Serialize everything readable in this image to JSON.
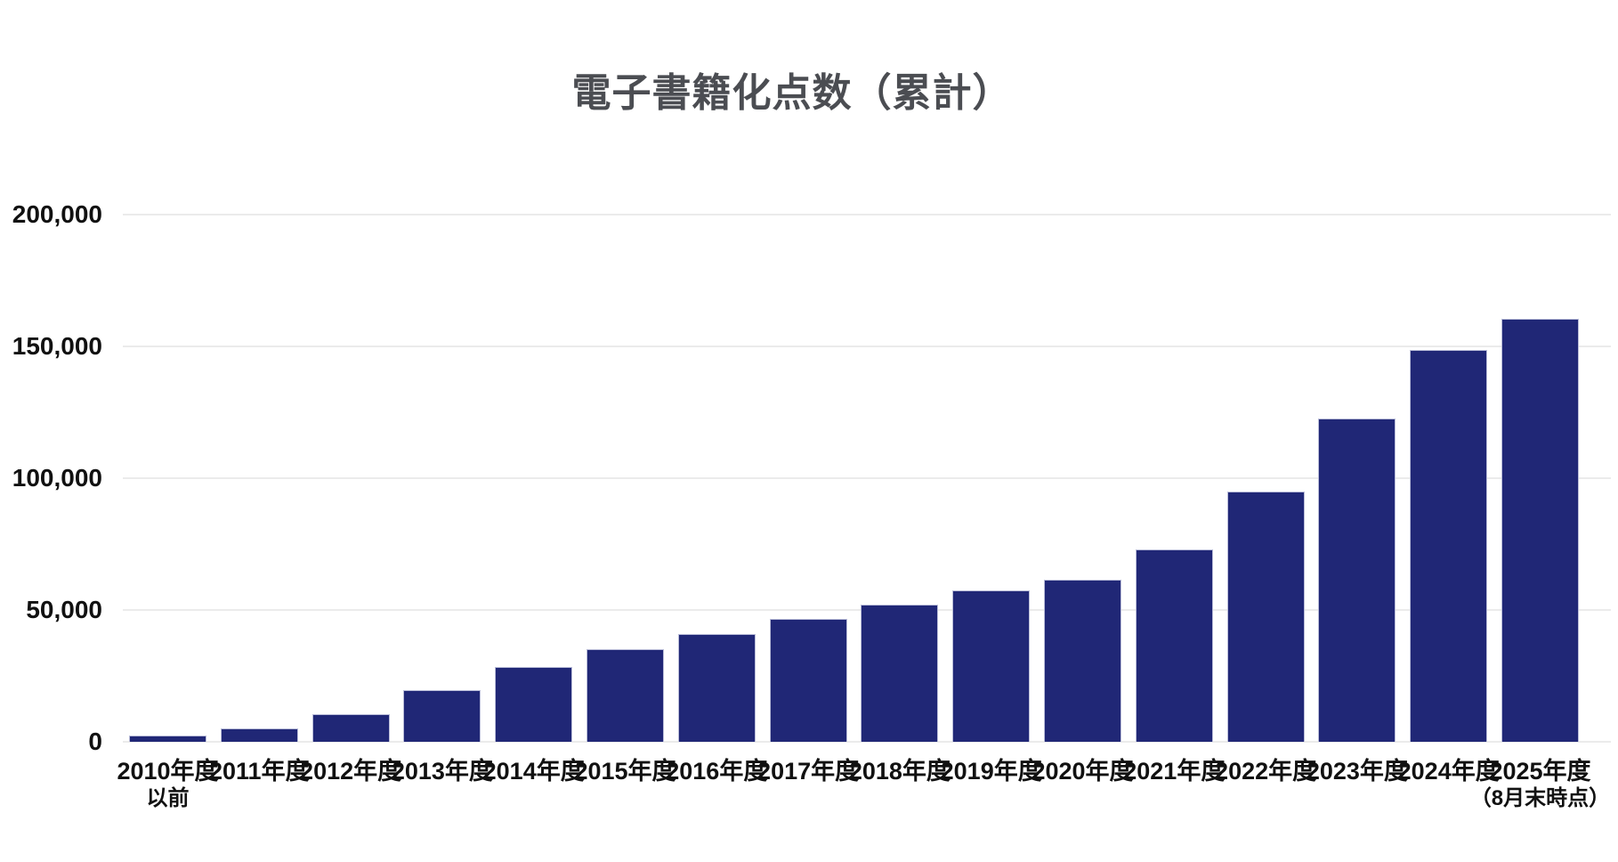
{
  "chart_data": {
    "type": "bar",
    "title": "電子書籍化点数（累計）",
    "xlabel": "",
    "ylabel": "",
    "ylim": [
      0,
      200000
    ],
    "grid": "horizontal gridlines, light gray, on",
    "legend": "none",
    "categories": [
      {
        "key": "2010-and-earlier",
        "label": "2010年度",
        "sublabel": "以前"
      },
      {
        "key": "2011",
        "label": "2011年度",
        "sublabel": ""
      },
      {
        "key": "2012",
        "label": "2012年度",
        "sublabel": ""
      },
      {
        "key": "2013",
        "label": "2013年度",
        "sublabel": ""
      },
      {
        "key": "2014",
        "label": "2014年度",
        "sublabel": ""
      },
      {
        "key": "2015",
        "label": "2015年度",
        "sublabel": ""
      },
      {
        "key": "2016",
        "label": "2016年度",
        "sublabel": ""
      },
      {
        "key": "2017",
        "label": "2017年度",
        "sublabel": ""
      },
      {
        "key": "2018",
        "label": "2018年度",
        "sublabel": ""
      },
      {
        "key": "2019",
        "label": "2019年度",
        "sublabel": ""
      },
      {
        "key": "2020",
        "label": "2020年度",
        "sublabel": ""
      },
      {
        "key": "2021",
        "label": "2021年度",
        "sublabel": ""
      },
      {
        "key": "2022",
        "label": "2022年度",
        "sublabel": ""
      },
      {
        "key": "2023",
        "label": "2023年度",
        "sublabel": ""
      },
      {
        "key": "2024",
        "label": "2024年度",
        "sublabel": ""
      },
      {
        "key": "2025-aug",
        "label": "2025年度",
        "sublabel": "（8月末時点）"
      }
    ],
    "values": [
      2500,
      5000,
      10500,
      19500,
      28500,
      35000,
      41000,
      46500,
      52000,
      57500,
      61500,
      73000,
      95000,
      122500,
      148500,
      160500
    ],
    "y_ticks": [
      {
        "value": 0,
        "label": "0"
      },
      {
        "value": 50000,
        "label": "50,000"
      },
      {
        "value": 100000,
        "label": "100,000"
      },
      {
        "value": 150000,
        "label": "150,000"
      },
      {
        "value": 200000,
        "label": "200,000"
      }
    ],
    "colors": {
      "bar_fill": "#202776",
      "bar_border": "#b9bcd8",
      "gridline": "#ebebeb",
      "title_text": "#4b4d52",
      "tick_text": "#111111",
      "background": "#ffffff"
    }
  }
}
